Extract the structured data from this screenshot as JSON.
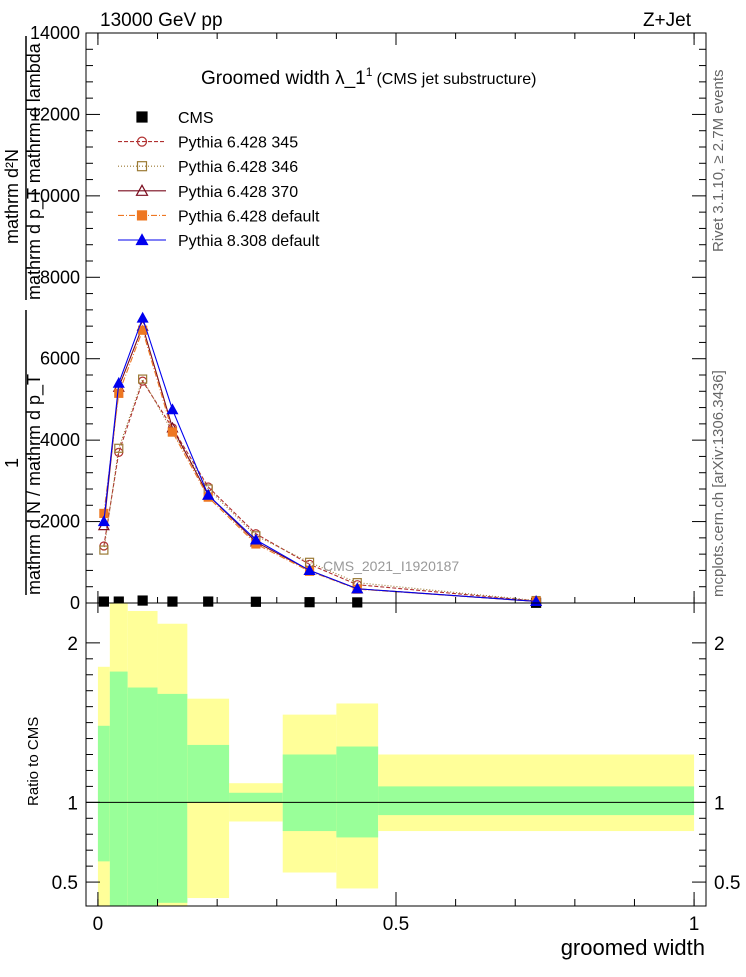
{
  "header": {
    "left": "13000 GeV pp",
    "right": "Z+Jet"
  },
  "side_labels": {
    "rivet": "Rivet 3.1.10, ≥ 2.7M events",
    "mcplots": "mcplots.cern.ch [arXiv:1306.3436]"
  },
  "chart_data": [
    {
      "type": "line",
      "title": "Groomed width  λ_1",
      "title_sup": "1",
      "subtitle": "(CMS jet substructure)",
      "watermark": "CMS_2021_I1920187",
      "ylabel": {
        "upper": "mathrm d²N",
        "upper_frac": "mathrm d p_T mathrm d lambda",
        "one": "1",
        "lower": "mathrm d N / mathrm d p_T"
      },
      "xlim": [
        -0.02,
        1.02
      ],
      "ylim": [
        0,
        14000
      ],
      "yticks": [
        0,
        2000,
        4000,
        6000,
        8000,
        10000,
        12000,
        14000
      ],
      "ytick_labels": [
        "0",
        "2000",
        "4000",
        "6000",
        "8000",
        "10000",
        "12000",
        "14000"
      ],
      "legend_position": "top-left",
      "bins": [
        0.0,
        0.02,
        0.05,
        0.1,
        0.15,
        0.22,
        0.31,
        0.4,
        0.47,
        1.0
      ],
      "x": [
        0.01,
        0.035,
        0.075,
        0.125,
        0.185,
        0.265,
        0.355,
        0.435,
        0.735
      ],
      "series": [
        {
          "name": "CMS",
          "color": "#000000",
          "marker": "square-filled",
          "dash": "none",
          "values": [
            35,
            35,
            60,
            35,
            35,
            30,
            20,
            15,
            5
          ]
        },
        {
          "name": "Pythia 6.428 345",
          "color": "#b03030",
          "marker": "circle-open",
          "dash": "4,2",
          "values": [
            1400,
            3700,
            5450,
            4300,
            2850,
            1700,
            950,
            450,
            50
          ]
        },
        {
          "name": "Pythia 6.428 346",
          "color": "#9b7a35",
          "marker": "square-open",
          "dash": "1,2",
          "values": [
            1300,
            3800,
            5500,
            4200,
            2800,
            1650,
            1000,
            500,
            60
          ]
        },
        {
          "name": "Pythia 6.428 370",
          "color": "#7a0c1e",
          "marker": "triangle-open",
          "dash": "none",
          "values": [
            1900,
            5300,
            6800,
            4300,
            2650,
            1500,
            800,
            350,
            40
          ]
        },
        {
          "name": "Pythia 6.428 default",
          "color": "#ee7722",
          "marker": "square-filled",
          "dash": "6,2,1,2",
          "values": [
            2200,
            5150,
            6700,
            4200,
            2600,
            1450,
            780,
            340,
            40
          ]
        },
        {
          "name": "Pythia 8.308 default",
          "color": "#0000ee",
          "marker": "triangle-filled",
          "dash": "none",
          "values": [
            2000,
            5400,
            7000,
            4750,
            2650,
            1550,
            800,
            350,
            40
          ]
        }
      ]
    },
    {
      "type": "area",
      "ylabel": "Ratio to CMS",
      "xlabel": "groomed width",
      "xlim": [
        -0.02,
        1.02
      ],
      "ylim": [
        0.35,
        2.25
      ],
      "yticks": [
        0.5,
        1,
        2
      ],
      "ytick_labels": [
        "0.5",
        "1",
        "2"
      ],
      "xticks": [
        0,
        0.5,
        1
      ],
      "xtick_labels": [
        "0",
        "0.5",
        "1"
      ],
      "bins": [
        0.0,
        0.02,
        0.05,
        0.1,
        0.15,
        0.22,
        0.31,
        0.4,
        0.47,
        1.0
      ],
      "stat_band": {
        "color": "#99ff99",
        "lo": [
          0.63,
          0.3,
          0.3,
          0.37,
          1.0,
          1.0,
          0.82,
          0.78,
          0.92
        ],
        "hi": [
          1.48,
          1.82,
          1.72,
          1.68,
          1.36,
          1.06,
          1.3,
          1.35,
          1.1
        ]
      },
      "total_band": {
        "color": "#ffff99",
        "lo": [
          0.3,
          0.3,
          0.3,
          0.3,
          0.4,
          0.88,
          0.56,
          0.46,
          0.82
        ],
        "hi": [
          1.85,
          2.3,
          2.2,
          2.12,
          1.65,
          1.12,
          1.55,
          1.62,
          1.3
        ]
      }
    }
  ]
}
